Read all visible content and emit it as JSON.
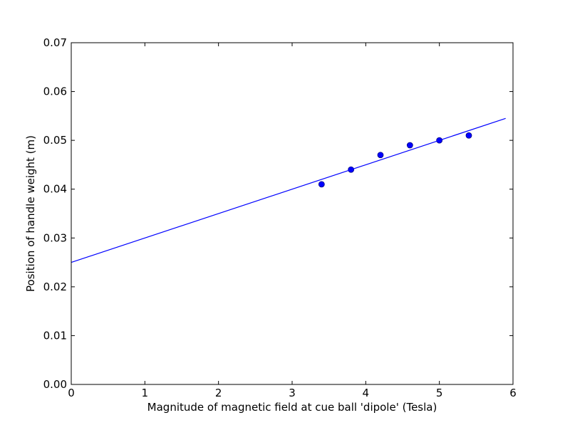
{
  "chart_data": {
    "type": "scatter",
    "title": "",
    "xlabel": "Magnitude of magnetic field at cue ball 'dipole' (Tesla)",
    "ylabel": "Position of handle weight (m)",
    "xlim": [
      0,
      6
    ],
    "ylim": [
      0,
      0.07
    ],
    "xticks": [
      0,
      1,
      2,
      3,
      4,
      5,
      6
    ],
    "xtick_labels": [
      "0",
      "1",
      "2",
      "3",
      "4",
      "5",
      "6"
    ],
    "yticks": [
      0,
      0.01,
      0.02,
      0.03,
      0.04,
      0.05,
      0.06,
      0.07
    ],
    "ytick_labels": [
      "0.00",
      "0.01",
      "0.02",
      "0.03",
      "0.04",
      "0.05",
      "0.06",
      "0.07"
    ],
    "grid": false,
    "legend": "none",
    "series": [
      {
        "kind": "points",
        "color": "#0000ff",
        "x": [
          3.4,
          3.8,
          4.2,
          4.6,
          5.0,
          5.4
        ],
        "y": [
          0.041,
          0.044,
          0.047,
          0.049,
          0.05,
          0.051
        ]
      },
      {
        "kind": "line",
        "color": "#0000ff",
        "x": [
          0,
          5.9
        ],
        "y": [
          0.025,
          0.0545
        ]
      }
    ]
  }
}
